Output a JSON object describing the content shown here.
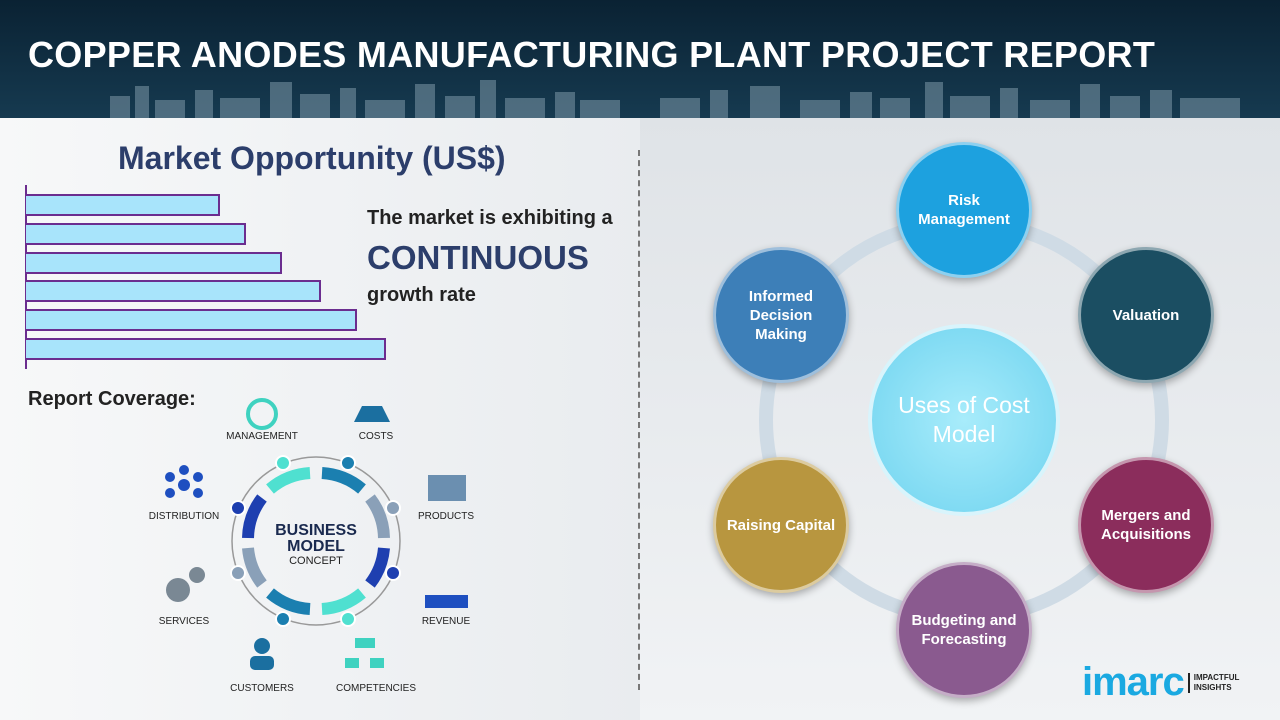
{
  "header": {
    "title": "COPPER ANODES MANUFACTURING PLANT PROJECT REPORT"
  },
  "market": {
    "title": "Market Opportunity (US$)",
    "bar_levels": [
      0.54,
      0.61,
      0.71,
      0.82,
      0.92,
      1.0
    ],
    "bar_color": "#a8e4fb",
    "bar_border": "#6b2d8f",
    "line1": "The market is exhibiting a",
    "line2": "CONTINUOUS",
    "line3": "growth rate"
  },
  "coverage": {
    "title": "Report Coverage:",
    "center_line1": "BUSINESS",
    "center_line2": "MODEL",
    "center_line3": "CONCEPT",
    "items": [
      "MANAGEMENT",
      "COSTS",
      "PRODUCTS",
      "REVENUE",
      "COMPETENCIES",
      "CUSTOMERS",
      "SERVICES",
      "DISTRIBUTION"
    ]
  },
  "uses": {
    "center": "Uses of Cost Model",
    "items": [
      {
        "label": "Risk Management",
        "color": "#1da1df"
      },
      {
        "label": "Valuation",
        "color": "#1b4e62"
      },
      {
        "label": "Mergers and Acquisitions",
        "color": "#8b2d5c"
      },
      {
        "label": "Budgeting and Forecasting",
        "color": "#8a5a8f"
      },
      {
        "label": "Raising Capital",
        "color": "#b8963f"
      },
      {
        "label": "Informed Decision Making",
        "color": "#3d7fb8"
      }
    ]
  },
  "logo": {
    "word": "imarc",
    "tag1": "IMPACTFUL",
    "tag2": "INSIGHTS"
  }
}
